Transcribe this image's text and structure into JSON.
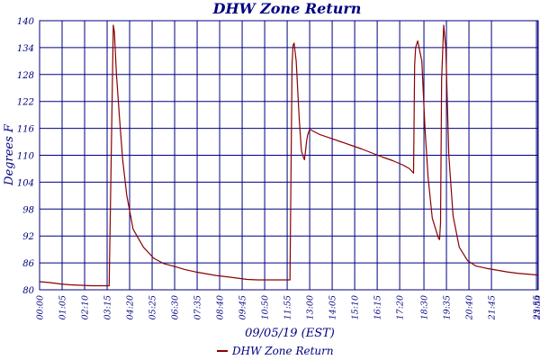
{
  "chart_data": {
    "type": "line",
    "title": "DHW Zone Return",
    "xlabel": "09/05/19 (EST)",
    "ylabel": "Degrees F",
    "ylim": [
      80,
      140
    ],
    "yticks": [
      80,
      86,
      92,
      98,
      104,
      110,
      116,
      122,
      128,
      134,
      140
    ],
    "xlim_hours": [
      0,
      24
    ],
    "xtick_labels": [
      "00:00",
      "01:05",
      "02:10",
      "03:15",
      "04:20",
      "05:25",
      "06:30",
      "07:35",
      "08:40",
      "09:45",
      "10:50",
      "11:55",
      "13:00",
      "14:05",
      "15:10",
      "16:15",
      "17:20",
      "18:30",
      "19:35",
      "20:40",
      "21:45",
      "23:55",
      "23:59"
    ],
    "xtick_hours": [
      0,
      1.0833,
      2.1667,
      3.25,
      4.3333,
      5.4167,
      6.5,
      7.5833,
      8.6667,
      9.75,
      10.8333,
      11.9167,
      13.0,
      14.0833,
      15.1667,
      16.25,
      17.3333,
      18.5,
      19.5833,
      20.6667,
      21.75,
      23.9167,
      23.9833
    ],
    "grid": true,
    "legend": "bottom-center",
    "series": [
      {
        "name": "DHW Zone Return",
        "color": "#8b0000",
        "x_hours": [
          0,
          0.5,
          1,
          1.5,
          2,
          2.5,
          3,
          3.35,
          3.45,
          3.55,
          3.6,
          3.7,
          3.85,
          4.0,
          4.2,
          4.5,
          5.0,
          5.5,
          6.0,
          6.5,
          7.0,
          7.5,
          8.0,
          8.5,
          9.0,
          9.5,
          10.0,
          10.5,
          11.0,
          11.5,
          11.9,
          12.05,
          12.15,
          12.2,
          12.25,
          12.35,
          12.5,
          12.6,
          12.7,
          12.75,
          12.8,
          12.85,
          12.9,
          13.0,
          13.2,
          13.5,
          14,
          14.5,
          15,
          15.5,
          16,
          16.5,
          17,
          17.5,
          17.8,
          17.9,
          18.0,
          18.05,
          18.1,
          18.2,
          18.4,
          18.55,
          18.7,
          18.9,
          19.2,
          19.25,
          19.3,
          19.35,
          19.45,
          19.55,
          19.7,
          19.9,
          20.2,
          20.6,
          21.0,
          21.5,
          22.0,
          22.5,
          23.0,
          23.5,
          24.0
        ],
        "values": [
          81.8,
          81.6,
          81.3,
          81.1,
          81.0,
          80.9,
          80.9,
          80.9,
          110,
          139,
          137.5,
          128,
          118,
          109,
          101,
          93.5,
          89.5,
          87.0,
          85.8,
          85.2,
          84.5,
          84.0,
          83.6,
          83.2,
          82.9,
          82.6,
          82.3,
          82.2,
          82.2,
          82.2,
          82.2,
          82.2,
          130,
          134.5,
          135,
          131,
          118,
          111,
          109.5,
          109,
          111,
          113,
          114.5,
          115.8,
          115.3,
          114.6,
          113.8,
          113.0,
          112.2,
          111.4,
          110.5,
          109.6,
          108.8,
          107.8,
          107.0,
          106.5,
          106.0,
          130,
          134,
          135.5,
          131,
          116,
          105,
          96,
          91.5,
          91.2,
          95,
          127,
          139,
          134,
          110,
          96.5,
          89.5,
          86.5,
          85.3,
          84.8,
          84.4,
          84.0,
          83.7,
          83.5,
          83.3
        ]
      }
    ]
  }
}
